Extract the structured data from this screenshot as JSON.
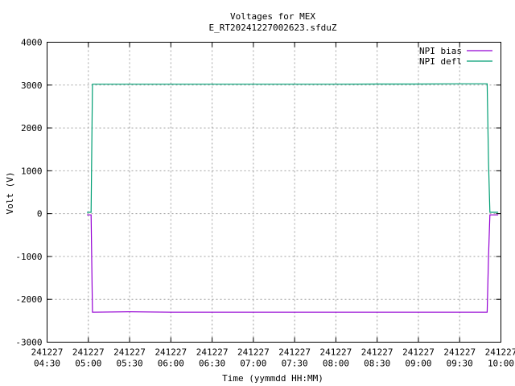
{
  "chart_data": {
    "type": "line",
    "title": "Voltages for MEX",
    "subtitle": "E_RT20241227002623.sfduZ",
    "xlabel": "Time (yymmdd HH:MM)",
    "ylabel": "Volt (V)",
    "ylim": [
      -3000,
      4000
    ],
    "y_ticks": [
      -3000,
      -2000,
      -1000,
      0,
      1000,
      2000,
      3000,
      4000
    ],
    "y_tick_labels": [
      "-3000",
      "-2000",
      "-1000",
      "0",
      "1000",
      "2000",
      "3000",
      "4000"
    ],
    "xlim": [
      "2024-12-27T04:30",
      "2024-12-27T10:00"
    ],
    "x_ticks": [
      {
        "time": "2024-12-27T04:30",
        "date": "241227",
        "clock": "04:30"
      },
      {
        "time": "2024-12-27T05:00",
        "date": "241227",
        "clock": "05:00"
      },
      {
        "time": "2024-12-27T05:30",
        "date": "241227",
        "clock": "05:30"
      },
      {
        "time": "2024-12-27T06:00",
        "date": "241227",
        "clock": "06:00"
      },
      {
        "time": "2024-12-27T06:30",
        "date": "241227",
        "clock": "06:30"
      },
      {
        "time": "2024-12-27T07:00",
        "date": "241227",
        "clock": "07:00"
      },
      {
        "time": "2024-12-27T07:30",
        "date": "241227",
        "clock": "07:30"
      },
      {
        "time": "2024-12-27T08:00",
        "date": "241227",
        "clock": "08:00"
      },
      {
        "time": "2024-12-27T08:30",
        "date": "241227",
        "clock": "08:30"
      },
      {
        "time": "2024-12-27T09:00",
        "date": "241227",
        "clock": "09:00"
      },
      {
        "time": "2024-12-27T09:30",
        "date": "241227",
        "clock": "09:30"
      },
      {
        "time": "2024-12-27T10:00",
        "date": "241227",
        "clock": "10:00"
      }
    ],
    "grid": true,
    "legend_position": "top-right",
    "series": [
      {
        "name": "NPI bias",
        "color": "#9400d3",
        "points": [
          {
            "t": "2024-12-27T04:59",
            "v": -30
          },
          {
            "t": "2024-12-27T05:02",
            "v": -30
          },
          {
            "t": "2024-12-27T05:03",
            "v": -2300
          },
          {
            "t": "2024-12-27T05:30",
            "v": -2290
          },
          {
            "t": "2024-12-27T06:00",
            "v": -2300
          },
          {
            "t": "2024-12-27T06:30",
            "v": -2300
          },
          {
            "t": "2024-12-27T07:00",
            "v": -2300
          },
          {
            "t": "2024-12-27T07:30",
            "v": -2300
          },
          {
            "t": "2024-12-27T08:00",
            "v": -2300
          },
          {
            "t": "2024-12-27T08:30",
            "v": -2300
          },
          {
            "t": "2024-12-27T09:00",
            "v": -2300
          },
          {
            "t": "2024-12-27T09:30",
            "v": -2300
          },
          {
            "t": "2024-12-27T09:50",
            "v": -2300
          },
          {
            "t": "2024-12-27T09:51",
            "v": -1000
          },
          {
            "t": "2024-12-27T09:52",
            "v": -30
          },
          {
            "t": "2024-12-27T09:58",
            "v": -30
          }
        ]
      },
      {
        "name": "NPI defl",
        "color": "#009e73",
        "points": [
          {
            "t": "2024-12-27T04:59",
            "v": 30
          },
          {
            "t": "2024-12-27T05:02",
            "v": 30
          },
          {
            "t": "2024-12-27T05:03",
            "v": 3020
          },
          {
            "t": "2024-12-27T05:30",
            "v": 3020
          },
          {
            "t": "2024-12-27T06:00",
            "v": 3020
          },
          {
            "t": "2024-12-27T06:30",
            "v": 3020
          },
          {
            "t": "2024-12-27T07:00",
            "v": 3020
          },
          {
            "t": "2024-12-27T07:30",
            "v": 3020
          },
          {
            "t": "2024-12-27T08:00",
            "v": 3020
          },
          {
            "t": "2024-12-27T08:30",
            "v": 3025
          },
          {
            "t": "2024-12-27T09:00",
            "v": 3025
          },
          {
            "t": "2024-12-27T09:30",
            "v": 3030
          },
          {
            "t": "2024-12-27T09:50",
            "v": 3030
          },
          {
            "t": "2024-12-27T09:51",
            "v": 1200
          },
          {
            "t": "2024-12-27T09:52",
            "v": 30
          },
          {
            "t": "2024-12-27T09:58",
            "v": 30
          }
        ]
      }
    ]
  }
}
